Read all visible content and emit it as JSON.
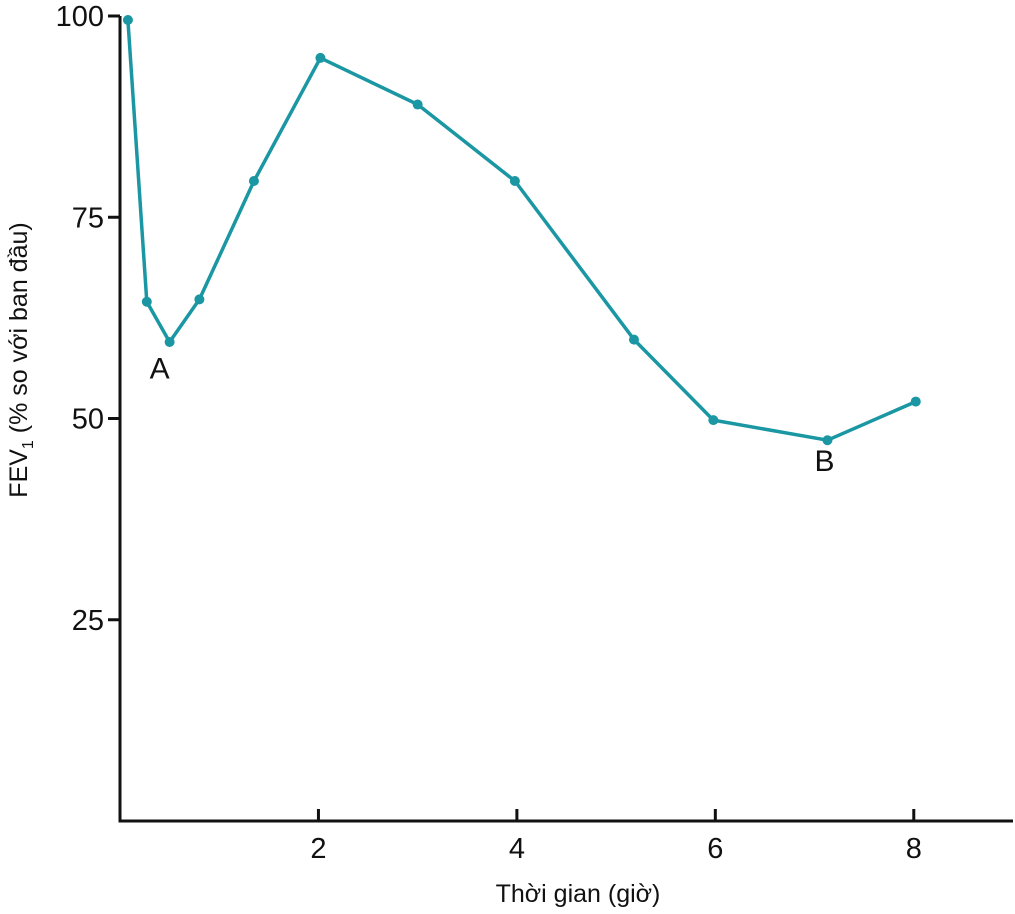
{
  "chart_data": {
    "type": "line",
    "xlabel": "Thời gian (giờ)",
    "ylabel_main": "FEV",
    "ylabel_sub": "1",
    "ylabel_rest": " (% so với ban đầu)",
    "xlim": [
      0,
      9
    ],
    "ylim": [
      0,
      100
    ],
    "xticks": [
      2,
      4,
      6,
      8
    ],
    "yticks": [
      25,
      50,
      75,
      100
    ],
    "grid": false,
    "series": [
      {
        "color": "#1a97a3",
        "x": [
          0.08,
          0.27,
          0.5,
          0.8,
          1.35,
          2.02,
          3.0,
          3.98,
          5.18,
          5.98,
          7.13,
          8.02
        ],
        "y": [
          99.5,
          64.5,
          59.5,
          64.8,
          79.5,
          94.8,
          89.0,
          79.5,
          59.8,
          49.8,
          47.3,
          52.1
        ]
      }
    ],
    "annotations": [
      {
        "text": "A",
        "x": 0.4,
        "y": 55
      },
      {
        "text": "B",
        "x": 7.1,
        "y": 43.5
      }
    ]
  }
}
